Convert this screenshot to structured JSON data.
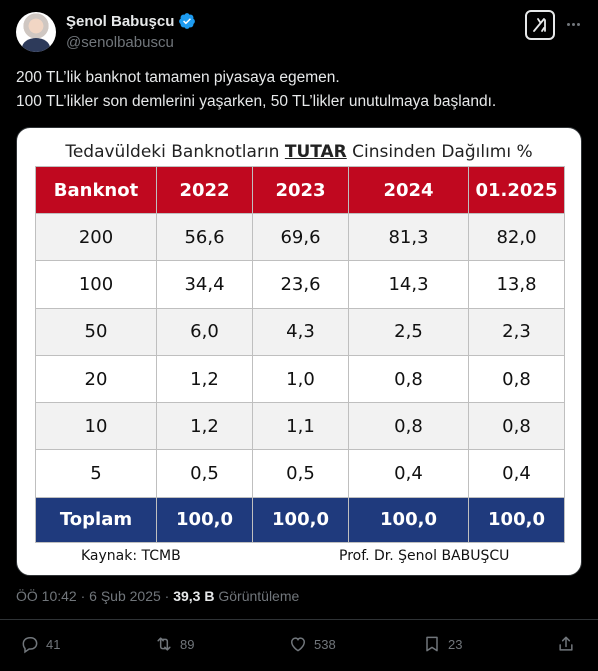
{
  "author": {
    "display_name": "Şenol Babuşcu",
    "handle": "@senolbabuscu"
  },
  "tweet": {
    "line1": "200 TL’lik banknot tamamen piyasaya egemen.",
    "line2": "100 TL’likler son demlerini yaşarken, 50 TL’likler unutulmaya başlandı."
  },
  "card": {
    "title_pre": "Tedavüldeki Banknotların ",
    "title_emph": "TUTAR",
    "title_post": " Cinsinden Dağılımı %",
    "source": "Kaynak: TCMB",
    "author": "Prof. Dr. Şenol BABUŞCU",
    "headers": [
      "Banknot",
      "2022",
      "2023",
      "2024",
      "01.2025"
    ],
    "rows": [
      [
        "200",
        "56,6",
        "69,6",
        "81,3",
        "82,0"
      ],
      [
        "100",
        "34,4",
        "23,6",
        "14,3",
        "13,8"
      ],
      [
        "50",
        "6,0",
        "4,3",
        "2,5",
        "2,3"
      ],
      [
        "20",
        "1,2",
        "1,0",
        "0,8",
        "0,8"
      ],
      [
        "10",
        "1,2",
        "1,1",
        "0,8",
        "0,8"
      ],
      [
        "5",
        "0,5",
        "0,5",
        "0,4",
        "0,4"
      ]
    ],
    "total": [
      "Toplam",
      "100,0",
      "100,0",
      "100,0",
      "100,0"
    ]
  },
  "meta": {
    "time": "ÖÖ 10:42 · 6 Şub 2025 · ",
    "views_count": "39,3 B",
    "views_label": " Görüntüleme"
  },
  "actions": {
    "replies": "41",
    "reposts": "89",
    "likes": "538",
    "bookmarks": "23"
  },
  "colors": {
    "header_red": "#c0081f",
    "total_blue": "#1f3a7d",
    "verified_blue": "#1d9bf0"
  }
}
